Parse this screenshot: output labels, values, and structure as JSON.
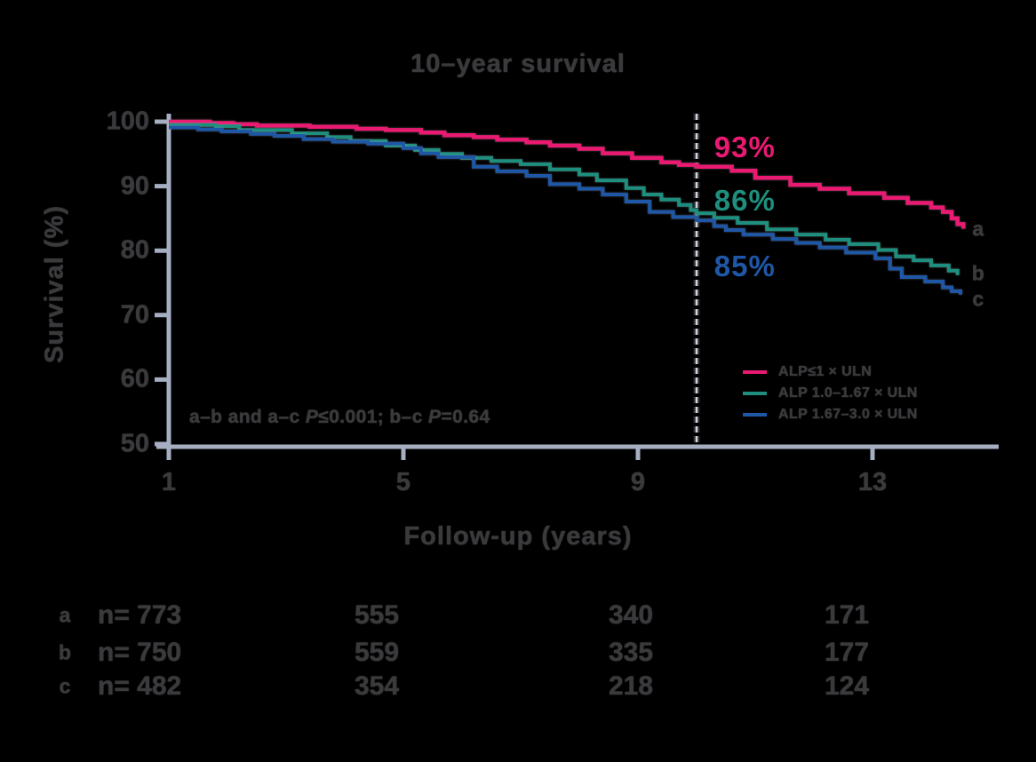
{
  "title": "10–year survival",
  "colors": {
    "pink": "#EA1A72",
    "teal": "#1E8F7E",
    "blue": "#1F57A7",
    "axis": "#A6AEC2",
    "text": "#3A3A3D",
    "dash_outline": "#2E2E31",
    "dash_fill": "#D2D6DE",
    "background": "#000000"
  },
  "chart_data": {
    "type": "line",
    "subtype": "kaplan-meier-step",
    "title": "10–year survival",
    "xlabel": "Follow-up (years)",
    "ylabel": "Survival (%)",
    "xticks": [
      1,
      5,
      9,
      13
    ],
    "yticks": [
      100,
      90,
      80,
      70,
      60,
      50
    ],
    "xlim": [
      1,
      15.2
    ],
    "ylim": [
      50,
      100
    ],
    "grid": false,
    "legend_position": "right-middle",
    "dashed_line_x": 10,
    "annotations": [
      {
        "text": "93%",
        "x": 10.3,
        "y": 96.0,
        "color": "#EA1A72"
      },
      {
        "text": "86%",
        "x": 10.3,
        "y": 87.7,
        "color": "#1E8F7E"
      },
      {
        "text": "85%",
        "x": 10.3,
        "y": 77.6,
        "color": "#1F57A7"
      }
    ],
    "series": [
      {
        "id": "a",
        "label": "ALP≤1 × ULN",
        "color": "#EA1A72",
        "stroke_width": 4.5,
        "survival_at_10y": "93%",
        "end_label": {
          "text": "a",
          "x": 14.8,
          "y": 83.4
        },
        "points": [
          [
            1,
            100
          ],
          [
            1.7,
            99.8
          ],
          [
            2.1,
            99.6
          ],
          [
            2.5,
            99.4
          ],
          [
            3.4,
            99.2
          ],
          [
            4.2,
            98.9
          ],
          [
            4.7,
            98.7
          ],
          [
            5.3,
            98.3
          ],
          [
            5.7,
            97.9
          ],
          [
            6.2,
            97.6
          ],
          [
            6.6,
            97.2
          ],
          [
            7.1,
            96.8
          ],
          [
            7.5,
            96.3
          ],
          [
            8.0,
            95.8
          ],
          [
            8.4,
            95.1
          ],
          [
            8.9,
            94.4
          ],
          [
            9.4,
            93.7
          ],
          [
            9.7,
            93.3
          ],
          [
            10,
            93
          ],
          [
            10.6,
            92.4
          ],
          [
            11,
            91.3
          ],
          [
            11.6,
            90.2
          ],
          [
            12.1,
            89.6
          ],
          [
            12.6,
            88.9
          ],
          [
            13.2,
            88.2
          ],
          [
            13.6,
            87.4
          ],
          [
            14,
            86.7
          ],
          [
            14.2,
            86.0
          ],
          [
            14.35,
            85.0
          ],
          [
            14.45,
            84.1
          ],
          [
            14.55,
            83.4
          ]
        ]
      },
      {
        "id": "b",
        "label": "ALP 1.0–1.67 × ULN",
        "color": "#1E8F7E",
        "stroke_width": 4,
        "survival_at_10y": "86%",
        "end_label": {
          "text": "b",
          "x": 14.8,
          "y": 76.4
        },
        "points": [
          [
            1,
            99.5
          ],
          [
            1.8,
            99.3
          ],
          [
            2.2,
            98.7
          ],
          [
            3.1,
            98.2
          ],
          [
            3.7,
            97.6
          ],
          [
            4.1,
            97.0
          ],
          [
            4.7,
            96.3
          ],
          [
            5.2,
            95.6
          ],
          [
            5.6,
            95.0
          ],
          [
            6.0,
            94.4
          ],
          [
            6.5,
            93.9
          ],
          [
            7.0,
            93.4
          ],
          [
            7.5,
            92.6
          ],
          [
            8.0,
            91.8
          ],
          [
            8.3,
            90.9
          ],
          [
            8.8,
            89.7
          ],
          [
            9.1,
            88.7
          ],
          [
            9.4,
            87.9
          ],
          [
            9.7,
            87.1
          ],
          [
            9.9,
            86.3
          ],
          [
            10,
            85.8
          ],
          [
            10.3,
            85.1
          ],
          [
            10.7,
            84.3
          ],
          [
            11.2,
            83.3
          ],
          [
            11.7,
            82.5
          ],
          [
            12.2,
            81.7
          ],
          [
            12.6,
            81.0
          ],
          [
            13.1,
            80.1
          ],
          [
            13.4,
            79.1
          ],
          [
            13.7,
            78.5
          ],
          [
            14,
            77.7
          ],
          [
            14.3,
            76.9
          ],
          [
            14.45,
            76.2
          ]
        ]
      },
      {
        "id": "c",
        "label": "ALP 1.67–3.0 × ULN",
        "color": "#1F57A7",
        "stroke_width": 4,
        "survival_at_10y": "85%",
        "end_label": {
          "text": "c",
          "x": 14.8,
          "y": 72.4
        },
        "points": [
          [
            1,
            99.1
          ],
          [
            1.5,
            98.8
          ],
          [
            1.9,
            98.5
          ],
          [
            2.4,
            98.1
          ],
          [
            2.8,
            97.8
          ],
          [
            3.3,
            97.3
          ],
          [
            3.8,
            96.9
          ],
          [
            4.4,
            96.6
          ],
          [
            5.0,
            95.9
          ],
          [
            5.3,
            95.1
          ],
          [
            5.6,
            94.5
          ],
          [
            6.2,
            93.0
          ],
          [
            6.6,
            92.3
          ],
          [
            7.1,
            91.6
          ],
          [
            7.5,
            90.3
          ],
          [
            8.0,
            89.6
          ],
          [
            8.4,
            88.7
          ],
          [
            8.8,
            87.6
          ],
          [
            9.2,
            86.0
          ],
          [
            9.6,
            85.2
          ],
          [
            10,
            84.7
          ],
          [
            10.3,
            83.8
          ],
          [
            10.5,
            83.2
          ],
          [
            10.8,
            82.5
          ],
          [
            11.3,
            81.8
          ],
          [
            11.7,
            81.2
          ],
          [
            12.1,
            80.5
          ],
          [
            12.55,
            79.7
          ],
          [
            13.05,
            78.8
          ],
          [
            13.3,
            77.2
          ],
          [
            13.5,
            75.9
          ],
          [
            13.9,
            75.2
          ],
          [
            14.2,
            74.3
          ],
          [
            14.35,
            73.7
          ],
          [
            14.5,
            73.2
          ]
        ]
      }
    ],
    "note_parts": [
      "a–b and a–c ",
      "P",
      "≤0.001; b–c ",
      "P",
      "=0.64"
    ],
    "risk_table": {
      "rows": [
        {
          "label": "a",
          "values": [
            "n= 773",
            "555",
            "340",
            "171"
          ]
        },
        {
          "label": "b",
          "values": [
            "n= 750",
            "559",
            "335",
            "177"
          ]
        },
        {
          "label": "c",
          "values": [
            "n= 482",
            "354",
            "218",
            "124"
          ]
        }
      ]
    }
  }
}
